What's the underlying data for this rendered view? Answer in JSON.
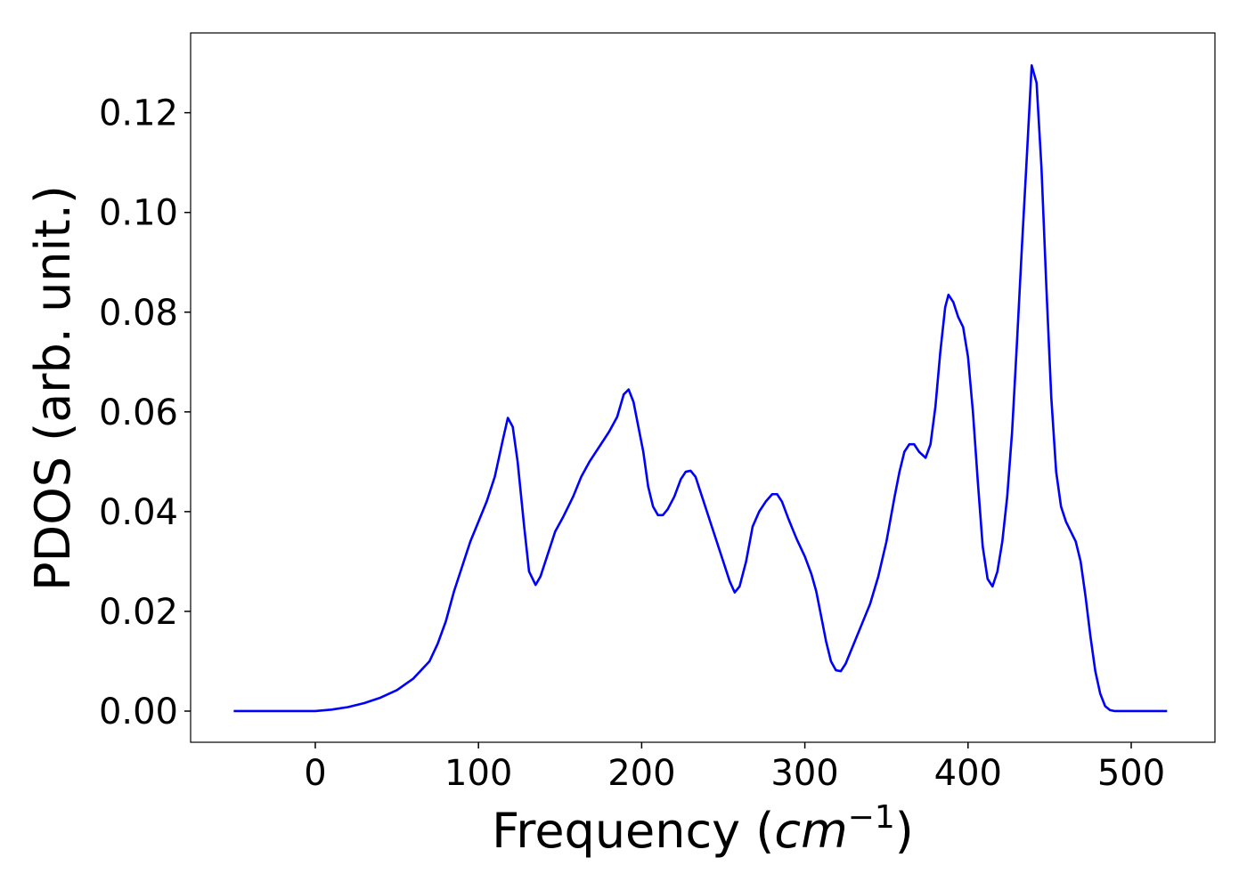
{
  "chart_data": {
    "type": "line",
    "xlabel": [
      "Frequency (",
      "cm",
      "−1",
      ")"
    ],
    "ylabel": "PDOS (arb. unit.)",
    "color": "#0000ff",
    "xlim": [
      -76.4,
      551.3
    ],
    "ylim": [
      -0.00625,
      0.136
    ],
    "xticks": [
      0,
      100,
      200,
      300,
      400,
      500
    ],
    "yticks": [
      {
        "value": 0,
        "label": "0.00"
      },
      0.02,
      0.04,
      0.06,
      0.08,
      {
        "value": 0.1,
        "label": "0.10"
      },
      0.12
    ],
    "grid": false,
    "x": [
      -50,
      0,
      10,
      20,
      30,
      40,
      50,
      60,
      70,
      75,
      80,
      85,
      90,
      95,
      100,
      105,
      110,
      115,
      118,
      121,
      124,
      128,
      131,
      135,
      138,
      142,
      147,
      152,
      158,
      163,
      168,
      175,
      180,
      185,
      189,
      192,
      195,
      198,
      201,
      204,
      207,
      210,
      213,
      216,
      220,
      224,
      227,
      230,
      233,
      236,
      240,
      245,
      250,
      254,
      257,
      260,
      264,
      268,
      272,
      276,
      280,
      283,
      286,
      290,
      295,
      300,
      304,
      307,
      310,
      313,
      316,
      319,
      322,
      325,
      330,
      335,
      340,
      345,
      350,
      355,
      358,
      361,
      364,
      367,
      370,
      374,
      377,
      380,
      383,
      386,
      388,
      391,
      394,
      397,
      400,
      403,
      406,
      409,
      412,
      415,
      418,
      421,
      424,
      427,
      430,
      433,
      436,
      439,
      442,
      445,
      448,
      451,
      454,
      457,
      460,
      463,
      466,
      469,
      472,
      475,
      478,
      481,
      484,
      487,
      490,
      495,
      522
    ],
    "values": [
      0,
      0,
      0.0003,
      0.0008,
      0.0016,
      0.0027,
      0.0042,
      0.0065,
      0.01,
      0.0135,
      0.018,
      0.024,
      0.029,
      0.034,
      0.038,
      0.042,
      0.047,
      0.0545,
      0.0588,
      0.057,
      0.05,
      0.037,
      0.028,
      0.0253,
      0.027,
      0.031,
      0.036,
      0.039,
      0.043,
      0.047,
      0.05,
      0.0535,
      0.056,
      0.059,
      0.0635,
      0.0645,
      0.062,
      0.057,
      0.052,
      0.045,
      0.041,
      0.0393,
      0.0393,
      0.0405,
      0.043,
      0.0465,
      0.048,
      0.0482,
      0.047,
      0.044,
      0.04,
      0.035,
      0.03,
      0.026,
      0.0238,
      0.025,
      0.03,
      0.037,
      0.04,
      0.042,
      0.0435,
      0.0435,
      0.042,
      0.0385,
      0.0345,
      0.031,
      0.0275,
      0.024,
      0.019,
      0.014,
      0.01,
      0.0082,
      0.008,
      0.0095,
      0.0135,
      0.0175,
      0.0215,
      0.027,
      0.034,
      0.043,
      0.048,
      0.052,
      0.0535,
      0.0535,
      0.052,
      0.0508,
      0.0535,
      0.061,
      0.072,
      0.081,
      0.0835,
      0.082,
      0.079,
      0.077,
      0.071,
      0.06,
      0.046,
      0.033,
      0.0265,
      0.025,
      0.028,
      0.034,
      0.043,
      0.056,
      0.074,
      0.093,
      0.111,
      0.1295,
      0.126,
      0.109,
      0.085,
      0.063,
      0.048,
      0.041,
      0.038,
      0.036,
      0.034,
      0.03,
      0.023,
      0.015,
      0.008,
      0.0035,
      0.001,
      0.0002,
      0,
      0,
      0
    ]
  }
}
